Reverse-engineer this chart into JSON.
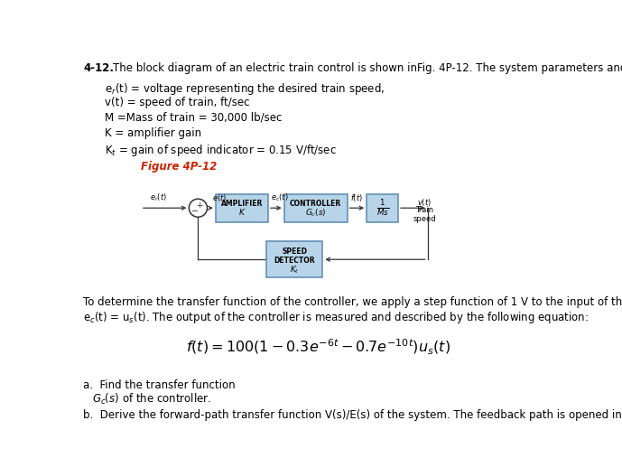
{
  "title_num": "4-12.",
  "title_text": "The block diagram of an electric train control is shown inFig. 4P-12. The system parameters and variables are",
  "params": [
    "e$_r$(t) = voltage representing the desired train speed,",
    "v(t) = speed of train, ft/sec",
    "M =Mass of train = 30,000 lb/sec",
    "K = amplifier gain",
    "K$_t$ = gain of speed indicator = 0.15 V/ft/sec"
  ],
  "figure_label": "Figure 4P-12",
  "description_line1": "To determine the transfer function of the controller, we apply a step function of 1 V to the input of the controller, that is,",
  "description_line2": "e$_c$(t) = u$_s$(t). The output of the controller is measured and described by the following equation:",
  "equation": "$f(t) = 100(1 - 0.3e^{-6t} - 0.7e^{-10t})u_s(t)$",
  "part_a_line1": "a.  Find the transfer function",
  "part_a_line2": "$G_c(s)$ of the controller.",
  "part_b": "b.  Derive the forward-path transfer function V(s)/E(s) of the system. The feedback path is opened in this case.",
  "bg_color": "#ffffff",
  "box_fill": "#b8d4e8",
  "box_edge": "#5a8ab0",
  "text_color": "#000000",
  "red_color": "#cc2200",
  "font_main": 8.5,
  "font_small": 6.0
}
